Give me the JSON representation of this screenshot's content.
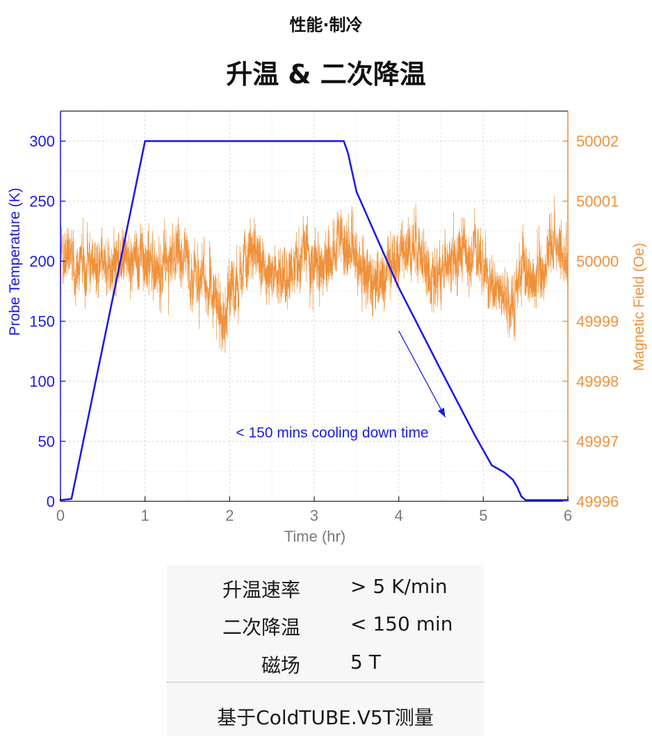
{
  "header": {
    "category": "性能·制冷",
    "title": "升温 & 二次降温"
  },
  "chart_data": {
    "type": "line",
    "x_label": "Time (hr)",
    "y_left_label": "Probe Temperature (K)",
    "y_right_label": "Magnetic Field (Oe)",
    "x_range": [
      0,
      6
    ],
    "y_left_range": [
      0,
      325
    ],
    "y_right_range": [
      49996,
      50002.5
    ],
    "x_ticks": [
      "0",
      "1",
      "2",
      "3",
      "4",
      "5",
      "6"
    ],
    "y_left_ticks": [
      "0",
      "50",
      "100",
      "150",
      "200",
      "250",
      "300"
    ],
    "y_right_ticks": [
      "49996",
      "49997",
      "49998",
      "49999",
      "50000",
      "50001",
      "50002"
    ],
    "grid": true,
    "colors": {
      "temperature": "#1a1aee",
      "field": "#f0913a",
      "frame": "#222222",
      "tick_text": "#7a7a7a"
    },
    "annotation": {
      "text": "< 150 mins cooling down time",
      "arrow_from": [
        4.0,
        142
      ],
      "arrow_to": [
        4.55,
        70
      ]
    },
    "series": [
      {
        "axis": "left",
        "color": "#1a1aee",
        "x": [
          0,
          0.13,
          1.0,
          3.35,
          3.4,
          3.5,
          4.0,
          4.5,
          4.9,
          5.1,
          5.25,
          5.35,
          5.4,
          5.45,
          5.5,
          6.0
        ],
        "y": [
          1,
          2,
          300,
          300,
          290,
          258,
          178,
          109,
          55,
          30,
          24,
          18,
          12,
          4,
          1,
          1
        ]
      },
      {
        "axis": "right",
        "color": "#f0913a",
        "trend_x": [
          0,
          0.4,
          0.6,
          0.8,
          1.05,
          1.2,
          1.45,
          1.6,
          1.75,
          1.9,
          2.05,
          2.2,
          2.4,
          2.7,
          2.9,
          3.1,
          3.3,
          3.45,
          3.6,
          3.8,
          3.95,
          4.2,
          4.4,
          4.7,
          4.9,
          5.1,
          5.3,
          5.5,
          5.7,
          5.85,
          6.0
        ],
        "trend_y": [
          50000,
          49999.95,
          49999.9,
          50000.1,
          50000,
          49999.9,
          50000.1,
          49999.75,
          49999.55,
          49999.15,
          49999.6,
          50000.15,
          49999.9,
          49999.8,
          50000.15,
          49999.95,
          50000.3,
          50000.2,
          49999.85,
          49999.6,
          50000.05,
          50000.2,
          49999.75,
          50000.15,
          50000.05,
          49999.55,
          49999.3,
          49999.75,
          49999.9,
          50000.3,
          49999.9
        ],
        "noise_amplitude": 0.38,
        "points": 4500,
        "seed": 12345
      }
    ]
  },
  "specs": [
    {
      "label": "升温速率",
      "value": "> 5 K/min"
    },
    {
      "label": "二次降温",
      "value": "< 150 min"
    },
    {
      "label": "磁场",
      "value": "5 T"
    }
  ],
  "footnote": "基于ColdTUBE.V5T测量"
}
